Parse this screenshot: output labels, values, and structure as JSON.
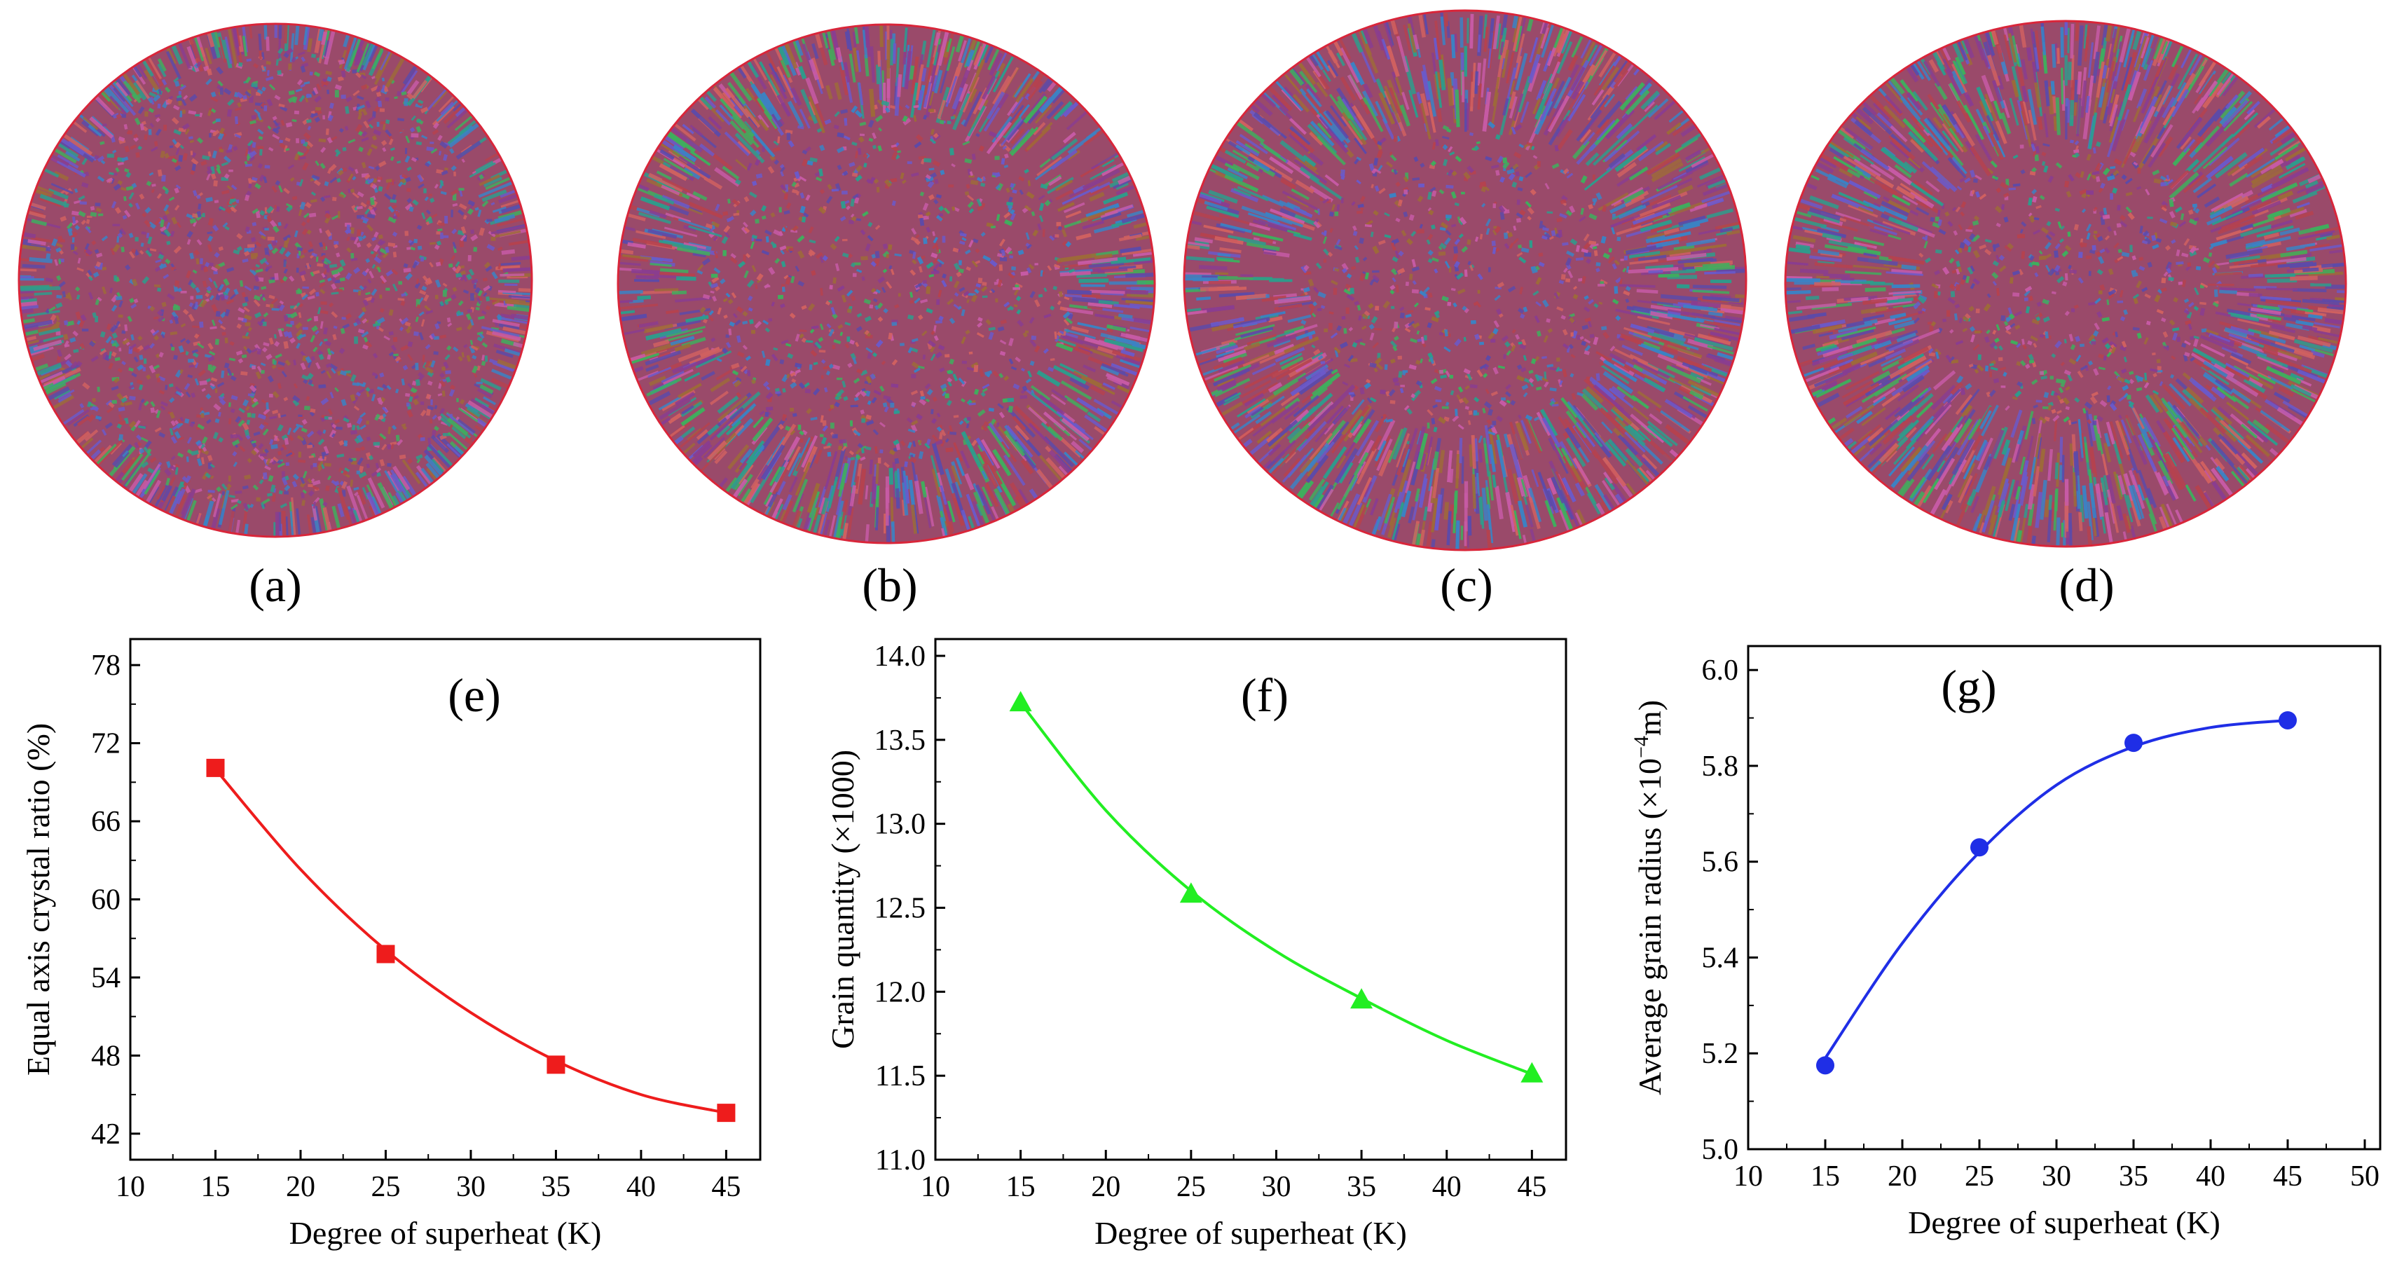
{
  "panels": {
    "labels": [
      "(a)",
      "(b)",
      "(c)",
      "(d)"
    ],
    "description_count": 4
  },
  "colors": {
    "boundary": "#d9263a",
    "grain_palette": [
      "#b5424f",
      "#8a3d8f",
      "#5d4aa8",
      "#2e9c8c",
      "#3fae5d",
      "#c75aa6",
      "#9e6a3a",
      "#d06060",
      "#6b59c9",
      "#3b83c4"
    ]
  },
  "chart_data": [
    {
      "type": "scatter",
      "panel_label": "(e)",
      "title": "",
      "xlabel": "Degree of superheat (K)",
      "ylabel": "Equal axis crystal ratio (%)",
      "xlim": [
        10,
        47
      ],
      "ylim": [
        40,
        80
      ],
      "xticks": [
        10,
        15,
        20,
        25,
        30,
        35,
        40,
        45
      ],
      "yticks": [
        42,
        48,
        54,
        60,
        66,
        72,
        78
      ],
      "series": [
        {
          "name": "Equal axis crystal ratio",
          "marker": "square",
          "color": "#ee1c1c",
          "x": [
            15,
            25,
            35,
            45
          ],
          "y": [
            70.1,
            55.8,
            47.3,
            43.6
          ],
          "fit": {
            "x": [
              15,
              20,
              25,
              30,
              35,
              40,
              45
            ],
            "y": [
              70.0,
              62.3,
              56.1,
              51.3,
              47.6,
              45.0,
              43.6
            ]
          }
        }
      ]
    },
    {
      "type": "scatter",
      "panel_label": "(f)",
      "title": "",
      "xlabel": "Degree of superheat (K)",
      "ylabel": "Grain quantity (×1000)",
      "xlim": [
        10,
        47
      ],
      "ylim": [
        11.0,
        14.1
      ],
      "xticks": [
        10,
        15,
        20,
        25,
        30,
        35,
        40,
        45
      ],
      "yticks": [
        11.0,
        11.5,
        12.0,
        12.5,
        13.0,
        13.5,
        14.0
      ],
      "series": [
        {
          "name": "Grain quantity",
          "marker": "triangle",
          "color": "#22ee22",
          "x": [
            15,
            25,
            35,
            45
          ],
          "y": [
            13.72,
            12.58,
            11.95,
            11.51
          ],
          "fit": {
            "x": [
              15,
              20,
              25,
              30,
              35,
              40,
              45
            ],
            "y": [
              13.72,
              13.08,
              12.6,
              12.24,
              11.96,
              11.71,
              11.51
            ]
          }
        }
      ]
    },
    {
      "type": "scatter",
      "panel_label": "(g)",
      "title": "",
      "xlabel": "Degree of superheat (K)",
      "ylabel_prefix": "Average grain radius (×10",
      "ylabel_sup": "−4",
      "ylabel_suffix": "m)",
      "xlim": [
        10,
        51
      ],
      "ylim": [
        5.0,
        6.05
      ],
      "xticks": [
        10,
        15,
        20,
        25,
        30,
        35,
        40,
        45,
        50
      ],
      "yticks": [
        5.0,
        5.2,
        5.4,
        5.6,
        5.8,
        6.0
      ],
      "series": [
        {
          "name": "Average grain radius",
          "marker": "circle",
          "color": "#1f2ee6",
          "x": [
            15,
            25,
            35,
            45
          ],
          "y": [
            5.175,
            5.63,
            5.848,
            5.895
          ],
          "fit": {
            "x": [
              15,
              20,
              25,
              30,
              35,
              40,
              45
            ],
            "y": [
              5.19,
              5.43,
              5.62,
              5.76,
              5.84,
              5.88,
              5.895
            ]
          }
        }
      ]
    }
  ]
}
